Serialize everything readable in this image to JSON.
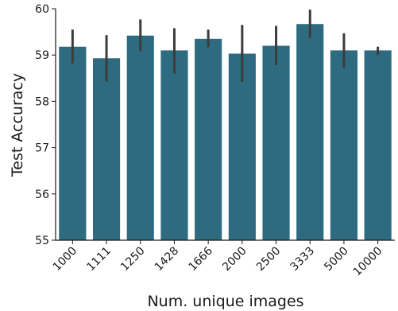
{
  "chart_data": {
    "type": "bar",
    "title": "",
    "xlabel": "Num. unique images",
    "ylabel": "Test Accuracy",
    "categories": [
      "1000",
      "1111",
      "1250",
      "1428",
      "1666",
      "2000",
      "2500",
      "3333",
      "5000",
      "10000"
    ],
    "values": [
      59.18,
      58.93,
      59.42,
      59.1,
      59.35,
      59.03,
      59.2,
      59.67,
      59.1,
      59.1
    ],
    "error_low": [
      58.82,
      58.43,
      59.08,
      58.6,
      59.17,
      58.42,
      58.78,
      59.37,
      58.72,
      59.0
    ],
    "error_high": [
      59.55,
      59.43,
      59.77,
      59.58,
      59.55,
      59.65,
      59.63,
      59.98,
      59.47,
      59.18
    ],
    "ylim": [
      55,
      60
    ],
    "yticks": [
      55,
      56,
      57,
      58,
      59,
      60
    ],
    "grid": false,
    "colors": {
      "bar": "#2e6b80",
      "error_bar": "#3c3c3c",
      "axis": "#1a1a1a"
    }
  }
}
